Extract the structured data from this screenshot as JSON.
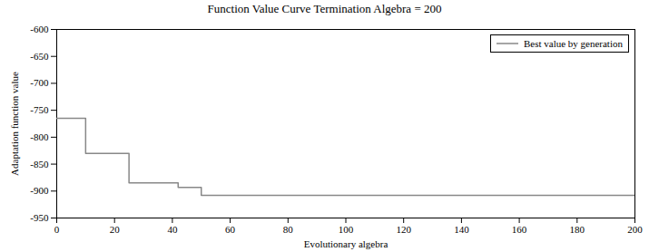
{
  "chart_data": {
    "type": "line",
    "title": "Function Value Curve   Termination Algebra = 200",
    "xlabel": "Evolutionary algebra",
    "ylabel": "Adaptation function value",
    "x": [
      0,
      10,
      10,
      25,
      25,
      42,
      42,
      50,
      50,
      200
    ],
    "series": [
      {
        "name": "Best value by generation",
        "color": "#888888",
        "values": [
          -765,
          -765,
          -830,
          -830,
          -885,
          -885,
          -893,
          -893,
          -908,
          -908
        ]
      }
    ],
    "xlim": [
      0,
      200
    ],
    "ylim": [
      -950,
      -600
    ],
    "xticks": [
      0,
      20,
      40,
      60,
      80,
      100,
      120,
      140,
      160,
      180,
      200
    ],
    "yticks": [
      -950,
      -900,
      -850,
      -800,
      -750,
      -700,
      -650,
      -600
    ],
    "grid": false,
    "legend": "upper right"
  }
}
